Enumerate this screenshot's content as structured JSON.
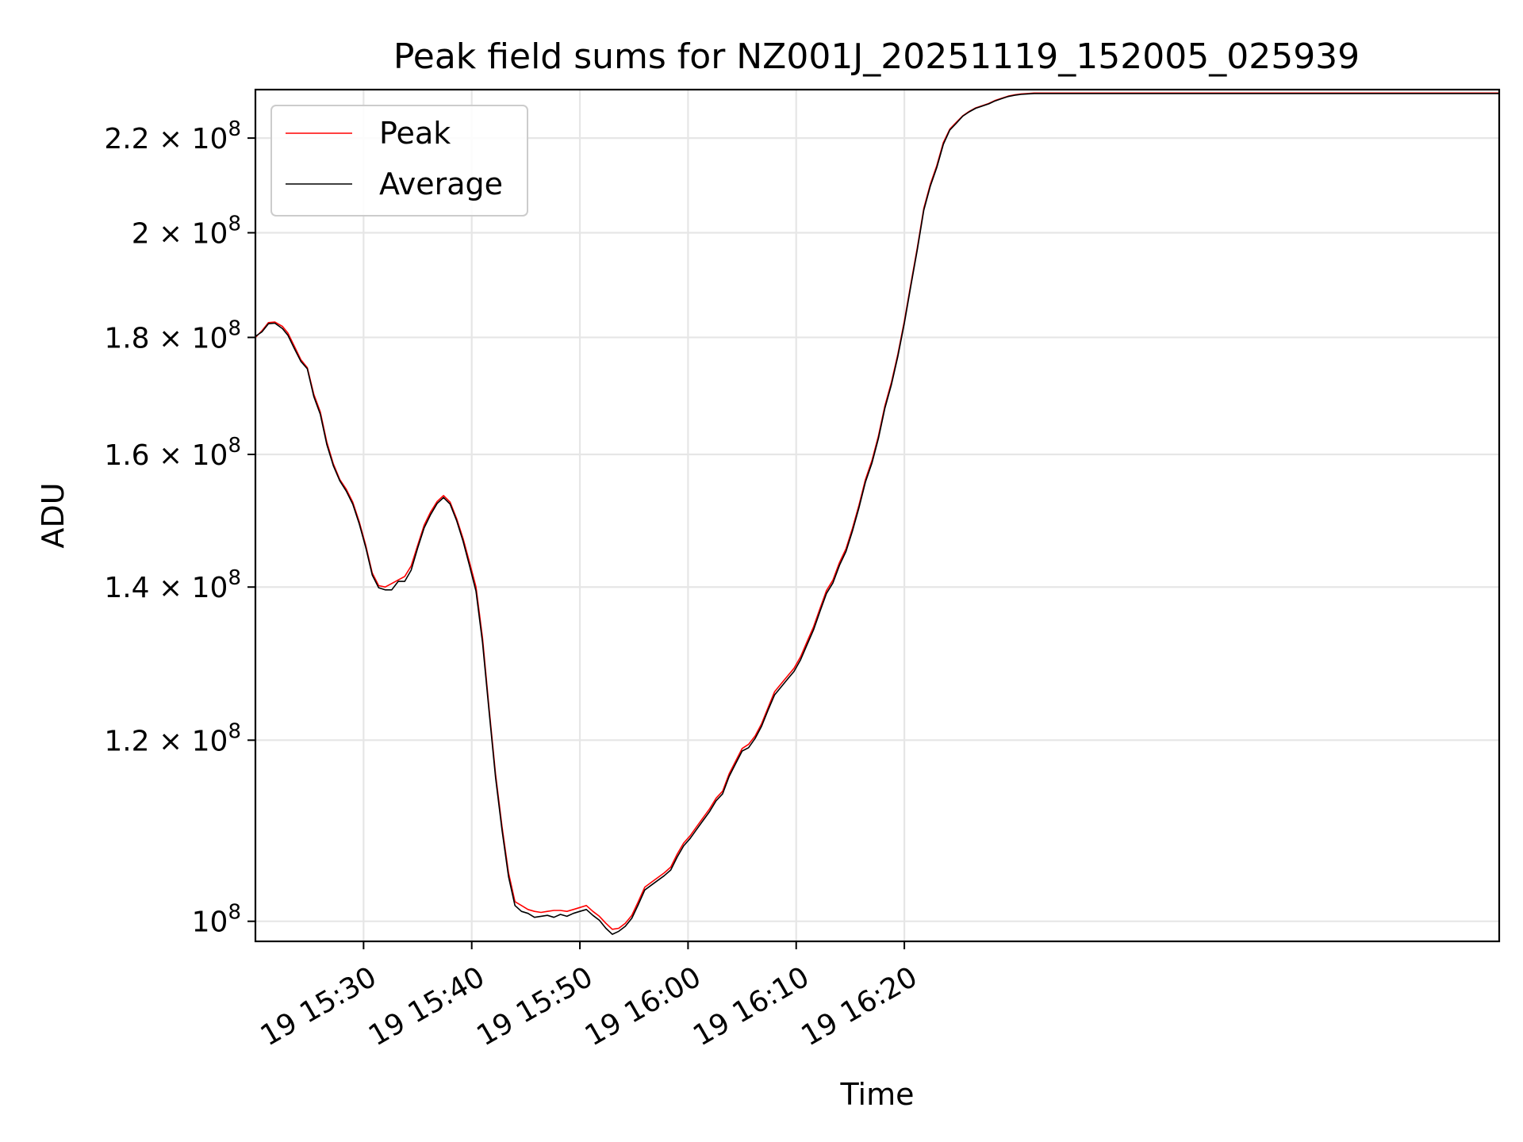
{
  "chart_data": {
    "type": "line",
    "title": "Peak field sums for NZ001J_20251119_152005_025939",
    "xlabel": "Time",
    "ylabel": "ADU",
    "y_scale": "log",
    "xlim": [
      0,
      115
    ],
    "x_units": "minutes after 19 15:20",
    "ylim": [
      98000000,
      231000000
    ],
    "grid": true,
    "legend_position": "upper-left",
    "x_ticks": [
      {
        "value": 10,
        "label": "19 15:30"
      },
      {
        "value": 20,
        "label": "19 15:40"
      },
      {
        "value": 30,
        "label": "19 15:50"
      },
      {
        "value": 40,
        "label": "19 16:00"
      },
      {
        "value": 50,
        "label": "19 16:10"
      },
      {
        "value": 60,
        "label": "19 16:20"
      }
    ],
    "y_ticks": [
      {
        "value": 100000000,
        "base": "10",
        "exp": "8"
      },
      {
        "value": 120000000,
        "base": "1.2 × 10",
        "exp": "8"
      },
      {
        "value": 140000000,
        "base": "1.4 × 10",
        "exp": "8"
      },
      {
        "value": 160000000,
        "base": "1.6 × 10",
        "exp": "8"
      },
      {
        "value": 180000000,
        "base": "1.8 × 10",
        "exp": "8"
      },
      {
        "value": 200000000,
        "base": "2 × 10",
        "exp": "8"
      },
      {
        "value": 220000000,
        "base": "2.2 × 10",
        "exp": "8"
      }
    ],
    "series": [
      {
        "name": "Peak",
        "color": "#ff0000",
        "points": [
          [
            0.0,
            180.0
          ],
          [
            0.6,
            181.2
          ],
          [
            1.2,
            182.7
          ],
          [
            1.8,
            182.8
          ],
          [
            2.5,
            182.0
          ],
          [
            3.0,
            180.8
          ],
          [
            3.6,
            178.4
          ],
          [
            4.2,
            176.0
          ],
          [
            4.8,
            174.6
          ],
          [
            5.4,
            170.0
          ],
          [
            6.0,
            167.0
          ],
          [
            6.6,
            162.0
          ],
          [
            7.2,
            158.5
          ],
          [
            7.8,
            156.0
          ],
          [
            8.4,
            154.5
          ],
          [
            9.0,
            152.5
          ],
          [
            9.6,
            149.5
          ],
          [
            10.2,
            146.0
          ],
          [
            10.8,
            142.0
          ],
          [
            11.4,
            140.2
          ],
          [
            12.0,
            140.0
          ],
          [
            12.6,
            140.5
          ],
          [
            13.2,
            141.0
          ],
          [
            13.8,
            141.5
          ],
          [
            14.4,
            143.0
          ],
          [
            15.0,
            146.0
          ],
          [
            15.6,
            149.0
          ],
          [
            16.2,
            151.0
          ],
          [
            16.8,
            152.6
          ],
          [
            17.4,
            153.5
          ],
          [
            18.0,
            152.5
          ],
          [
            18.6,
            150.0
          ],
          [
            19.2,
            147.0
          ],
          [
            19.8,
            143.5
          ],
          [
            20.4,
            140.0
          ],
          [
            21.0,
            133.0
          ],
          [
            21.6,
            124.0
          ],
          [
            22.2,
            116.0
          ],
          [
            22.8,
            110.0
          ],
          [
            23.4,
            105.0
          ],
          [
            24.0,
            102.0
          ],
          [
            24.6,
            101.6
          ],
          [
            25.2,
            101.2
          ],
          [
            25.8,
            101.0
          ],
          [
            26.4,
            100.9
          ],
          [
            27.0,
            101.0
          ],
          [
            27.6,
            101.1
          ],
          [
            28.2,
            101.1
          ],
          [
            28.8,
            101.0
          ],
          [
            29.4,
            101.2
          ],
          [
            30.0,
            101.4
          ],
          [
            30.6,
            101.6
          ],
          [
            31.2,
            101.0
          ],
          [
            31.8,
            100.5
          ],
          [
            32.4,
            99.8
          ],
          [
            33.0,
            99.2
          ],
          [
            33.6,
            99.3
          ],
          [
            34.2,
            99.8
          ],
          [
            34.8,
            100.6
          ],
          [
            35.4,
            102.0
          ],
          [
            36.0,
            103.5
          ],
          [
            36.6,
            104.0
          ],
          [
            37.2,
            104.5
          ],
          [
            37.8,
            105.0
          ],
          [
            38.4,
            105.6
          ],
          [
            39.0,
            107.0
          ],
          [
            39.6,
            108.2
          ],
          [
            40.2,
            109.0
          ],
          [
            40.8,
            110.0
          ],
          [
            41.4,
            111.0
          ],
          [
            42.0,
            112.0
          ],
          [
            42.6,
            113.2
          ],
          [
            43.2,
            114.0
          ],
          [
            43.8,
            116.0
          ],
          [
            44.4,
            117.5
          ],
          [
            45.0,
            119.0
          ],
          [
            45.6,
            119.5
          ],
          [
            46.2,
            120.5
          ],
          [
            46.8,
            122.0
          ],
          [
            47.4,
            124.0
          ],
          [
            48.0,
            126.0
          ],
          [
            48.6,
            127.0
          ],
          [
            49.2,
            128.0
          ],
          [
            49.8,
            129.0
          ],
          [
            50.4,
            130.5
          ],
          [
            51.0,
            132.5
          ],
          [
            51.6,
            134.5
          ],
          [
            52.2,
            137.0
          ],
          [
            52.8,
            139.5
          ],
          [
            53.4,
            141.0
          ],
          [
            54.0,
            143.5
          ],
          [
            54.6,
            145.5
          ],
          [
            55.2,
            148.5
          ],
          [
            55.8,
            152.0
          ],
          [
            56.4,
            156.0
          ],
          [
            57.0,
            159.0
          ],
          [
            57.6,
            163.0
          ],
          [
            58.2,
            168.0
          ],
          [
            58.8,
            172.0
          ],
          [
            59.4,
            177.0
          ],
          [
            60.0,
            183.0
          ],
          [
            60.6,
            190.0
          ],
          [
            61.2,
            197.0
          ],
          [
            61.8,
            205.0
          ],
          [
            62.4,
            210.0
          ],
          [
            63.0,
            214.0
          ],
          [
            63.6,
            219.0
          ],
          [
            64.2,
            222.0
          ],
          [
            64.8,
            223.5
          ],
          [
            65.4,
            225.0
          ],
          [
            66.0,
            226.0
          ],
          [
            66.6,
            226.8
          ],
          [
            67.2,
            227.3
          ],
          [
            67.8,
            227.8
          ],
          [
            68.4,
            228.5
          ],
          [
            69.0,
            229.0
          ],
          [
            69.6,
            229.5
          ],
          [
            70.2,
            229.8
          ],
          [
            70.8,
            230.0
          ],
          [
            71.4,
            230.1
          ],
          [
            72.0,
            230.2
          ],
          [
            73.0,
            230.2
          ],
          [
            75.0,
            230.2
          ],
          [
            80.0,
            230.2
          ],
          [
            90.0,
            230.2
          ],
          [
            100.0,
            230.2
          ],
          [
            115.0,
            230.2
          ]
        ]
      },
      {
        "name": "Average",
        "color": "#000000",
        "points": [
          [
            0.0,
            180.2
          ],
          [
            0.6,
            181.0
          ],
          [
            1.2,
            182.5
          ],
          [
            1.8,
            182.6
          ],
          [
            2.5,
            181.6
          ],
          [
            3.0,
            180.4
          ],
          [
            3.6,
            178.0
          ],
          [
            4.2,
            175.7
          ],
          [
            4.8,
            174.4
          ],
          [
            5.4,
            169.6
          ],
          [
            6.0,
            166.6
          ],
          [
            6.6,
            161.6
          ],
          [
            7.2,
            158.2
          ],
          [
            7.8,
            155.8
          ],
          [
            8.4,
            154.2
          ],
          [
            9.0,
            152.2
          ],
          [
            9.6,
            149.2
          ],
          [
            10.2,
            145.7
          ],
          [
            10.8,
            141.7
          ],
          [
            11.4,
            139.9
          ],
          [
            12.0,
            139.6
          ],
          [
            12.6,
            139.6
          ],
          [
            13.2,
            140.8
          ],
          [
            13.8,
            140.8
          ],
          [
            14.4,
            142.4
          ],
          [
            15.0,
            145.6
          ],
          [
            15.6,
            148.6
          ],
          [
            16.2,
            150.6
          ],
          [
            16.8,
            152.3
          ],
          [
            17.4,
            153.2
          ],
          [
            18.0,
            152.2
          ],
          [
            18.6,
            149.7
          ],
          [
            19.2,
            146.6
          ],
          [
            19.8,
            143.0
          ],
          [
            20.4,
            139.4
          ],
          [
            21.0,
            132.4
          ],
          [
            21.6,
            123.6
          ],
          [
            22.2,
            115.6
          ],
          [
            22.8,
            109.6
          ],
          [
            23.4,
            104.6
          ],
          [
            24.0,
            101.6
          ],
          [
            24.6,
            101.0
          ],
          [
            25.2,
            100.8
          ],
          [
            25.8,
            100.4
          ],
          [
            26.4,
            100.5
          ],
          [
            27.0,
            100.6
          ],
          [
            27.6,
            100.4
          ],
          [
            28.2,
            100.7
          ],
          [
            28.8,
            100.5
          ],
          [
            29.4,
            100.8
          ],
          [
            30.0,
            101.0
          ],
          [
            30.6,
            101.2
          ],
          [
            31.2,
            100.6
          ],
          [
            31.8,
            100.1
          ],
          [
            32.4,
            99.3
          ],
          [
            33.0,
            98.7
          ],
          [
            33.6,
            99.0
          ],
          [
            34.2,
            99.5
          ],
          [
            34.8,
            100.3
          ],
          [
            35.4,
            101.7
          ],
          [
            36.0,
            103.2
          ],
          [
            36.6,
            103.7
          ],
          [
            37.2,
            104.2
          ],
          [
            37.8,
            104.7
          ],
          [
            38.4,
            105.3
          ],
          [
            39.0,
            106.7
          ],
          [
            39.6,
            107.9
          ],
          [
            40.2,
            108.7
          ],
          [
            40.8,
            109.7
          ],
          [
            41.4,
            110.7
          ],
          [
            42.0,
            111.7
          ],
          [
            42.6,
            112.9
          ],
          [
            43.2,
            113.7
          ],
          [
            43.8,
            115.7
          ],
          [
            44.4,
            117.2
          ],
          [
            45.0,
            118.7
          ],
          [
            45.6,
            119.1
          ],
          [
            46.2,
            120.2
          ],
          [
            46.8,
            121.7
          ],
          [
            47.4,
            123.7
          ],
          [
            48.0,
            125.6
          ],
          [
            48.6,
            126.6
          ],
          [
            49.2,
            127.6
          ],
          [
            49.8,
            128.6
          ],
          [
            50.4,
            130.1
          ],
          [
            51.0,
            132.1
          ],
          [
            51.6,
            134.1
          ],
          [
            52.2,
            136.6
          ],
          [
            52.8,
            139.1
          ],
          [
            53.4,
            140.6
          ],
          [
            54.0,
            143.1
          ],
          [
            54.6,
            145.1
          ],
          [
            55.2,
            148.1
          ],
          [
            55.8,
            151.6
          ],
          [
            56.4,
            155.6
          ],
          [
            57.0,
            158.6
          ],
          [
            57.6,
            162.6
          ],
          [
            58.2,
            167.6
          ],
          [
            58.8,
            171.6
          ],
          [
            59.4,
            176.6
          ],
          [
            60.0,
            182.6
          ],
          [
            60.6,
            189.6
          ],
          [
            61.2,
            196.6
          ],
          [
            61.8,
            204.6
          ],
          [
            62.4,
            209.6
          ],
          [
            63.0,
            213.6
          ],
          [
            63.6,
            218.6
          ],
          [
            64.2,
            221.8
          ],
          [
            64.8,
            223.3
          ],
          [
            65.4,
            224.9
          ],
          [
            66.0,
            225.9
          ],
          [
            66.6,
            226.7
          ],
          [
            67.2,
            227.2
          ],
          [
            67.8,
            227.7
          ],
          [
            68.4,
            228.4
          ],
          [
            69.0,
            228.9
          ],
          [
            69.6,
            229.4
          ],
          [
            70.2,
            229.7
          ],
          [
            70.8,
            229.9
          ],
          [
            71.4,
            230.0
          ],
          [
            72.0,
            230.1
          ],
          [
            73.0,
            230.1
          ],
          [
            75.0,
            230.1
          ],
          [
            80.0,
            230.1
          ],
          [
            90.0,
            230.1
          ],
          [
            100.0,
            230.1
          ],
          [
            115.0,
            230.1
          ]
        ]
      }
    ],
    "series_value_scale": 1000000
  }
}
